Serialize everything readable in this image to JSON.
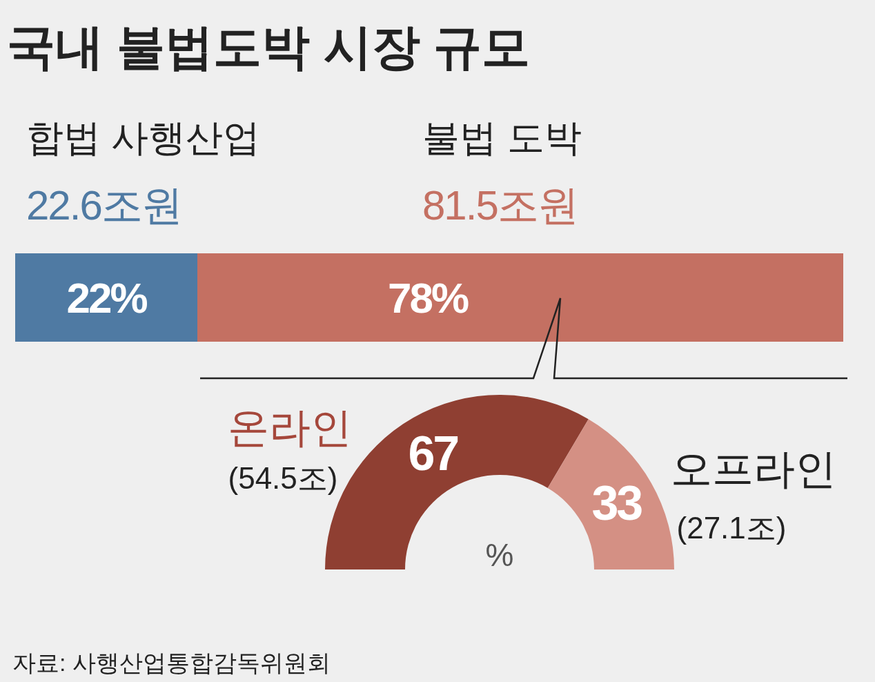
{
  "chart_data": [
    {
      "type": "bar",
      "title": "국내 불법도박 시장 규모",
      "orientation": "horizontal",
      "stacked": true,
      "categories": [
        null
      ],
      "series": [
        {
          "name": "합법 사행산업",
          "color": "#4f7aa3",
          "values": [
            22
          ],
          "value_labels": [
            "22%"
          ]
        },
        {
          "name": "불법 도박",
          "color": "#c47062",
          "values": [
            78
          ],
          "value_labels": [
            "78%"
          ]
        }
      ],
      "annotations": [
        "22.6조원",
        "81.5조원"
      ]
    },
    {
      "type": "donut",
      "categories": [
        "온라인",
        "오프라인"
      ],
      "values": [
        67,
        33
      ],
      "colors": [
        "#8f3f32",
        "#d49084"
      ],
      "data_labels": true,
      "annotations": [
        "(54.5조)",
        "(27.1조)",
        "%",
        "자료: 사행산업통합감독위원회"
      ]
    }
  ]
}
